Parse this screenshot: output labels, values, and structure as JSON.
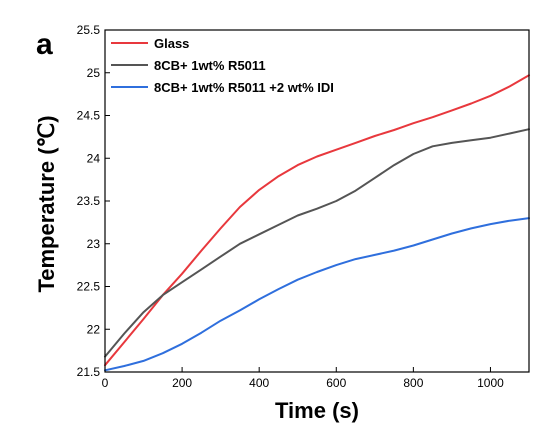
{
  "chart_data": {
    "type": "line",
    "panel_label": "a",
    "xlabel": "Time (s)",
    "ylabel": "Temperature (℃)",
    "xlim": [
      0,
      1100
    ],
    "ylim": [
      21.5,
      25.5
    ],
    "xticks": [
      0,
      200,
      400,
      600,
      800,
      1000
    ],
    "yticks": [
      21.5,
      22,
      22.5,
      23,
      23.5,
      24,
      24.5,
      25,
      25.5
    ],
    "grid": false,
    "legend_position": "top-left",
    "series": [
      {
        "name": "Glass",
        "color": "#e8383d",
        "x": [
          0,
          50,
          100,
          150,
          200,
          250,
          300,
          350,
          400,
          450,
          500,
          550,
          600,
          650,
          700,
          750,
          800,
          850,
          900,
          950,
          1000,
          1050,
          1100
        ],
        "y": [
          21.58,
          21.85,
          22.12,
          22.4,
          22.65,
          22.92,
          23.18,
          23.43,
          23.63,
          23.79,
          23.92,
          24.02,
          24.1,
          24.18,
          24.26,
          24.33,
          24.41,
          24.48,
          24.56,
          24.64,
          24.73,
          24.84,
          24.97
        ]
      },
      {
        "name": "8CB+ 1wt% R5011",
        "color": "#555555",
        "x": [
          0,
          50,
          100,
          150,
          200,
          250,
          300,
          350,
          400,
          450,
          500,
          550,
          600,
          650,
          700,
          750,
          800,
          850,
          900,
          950,
          1000,
          1050,
          1100
        ],
        "y": [
          21.68,
          21.95,
          22.2,
          22.4,
          22.55,
          22.7,
          22.85,
          23.0,
          23.11,
          23.22,
          23.33,
          23.41,
          23.5,
          23.62,
          23.77,
          23.92,
          24.05,
          24.14,
          24.18,
          24.21,
          24.24,
          24.29,
          24.34
        ]
      },
      {
        "name": "8CB+ 1wt% R5011 +2 wt% IDI",
        "color": "#2f6fdd",
        "x": [
          0,
          50,
          100,
          150,
          200,
          250,
          300,
          350,
          400,
          450,
          500,
          550,
          600,
          650,
          700,
          750,
          800,
          850,
          900,
          950,
          1000,
          1050,
          1100
        ],
        "y": [
          21.52,
          21.57,
          21.63,
          21.72,
          21.83,
          21.96,
          22.1,
          22.22,
          22.35,
          22.47,
          22.58,
          22.67,
          22.75,
          22.82,
          22.87,
          22.92,
          22.98,
          23.05,
          23.12,
          23.18,
          23.23,
          23.27,
          23.3
        ]
      }
    ]
  }
}
